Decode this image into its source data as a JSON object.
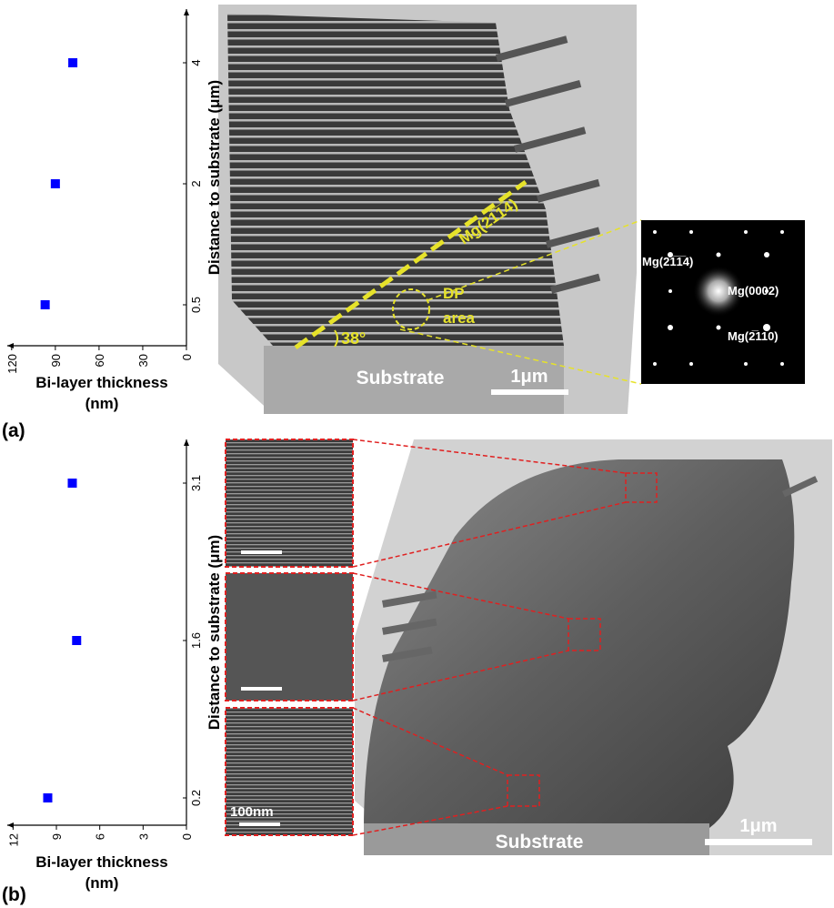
{
  "chart_data": [
    {
      "type": "scatter",
      "panel_label": "(a)",
      "x_label_lines": [
        "Bi-layer thickness",
        "(nm)"
      ],
      "y_label": "Distance to substrate (μm)",
      "categories": [
        "0.5",
        "2",
        "4"
      ],
      "values": [
        97,
        90,
        78
      ],
      "color": "#0000ff",
      "xlim": [
        123,
        0
      ],
      "xticks": [
        120,
        90,
        60,
        30,
        0
      ]
    },
    {
      "type": "scatter",
      "panel_label": "(b)",
      "x_label_lines": [
        "Bi-layer thickness",
        "(nm)"
      ],
      "y_label": "Distance to substrate (μm)",
      "categories": [
        "0.2",
        "1.6",
        "3.1"
      ],
      "values": [
        9.6,
        7.6,
        7.9
      ],
      "color": "#0000ff",
      "xlim": [
        12.4,
        0
      ],
      "xticks": [
        12,
        9,
        6,
        3,
        0
      ]
    }
  ],
  "micrographs": {
    "a": {
      "plane_label": "Mg(21̅1̅4)",
      "angle": "38°",
      "dp_lines": [
        "DP",
        "area"
      ],
      "substrate": "Substrate",
      "scale": "1μm",
      "diffraction_spots": [
        "Mg(21̅1̅4)",
        "Mg(0002)",
        "Mg(2̅110)"
      ]
    },
    "b": {
      "inset_scale": "100nm",
      "substrate": "Substrate",
      "scale": "1μm"
    }
  }
}
